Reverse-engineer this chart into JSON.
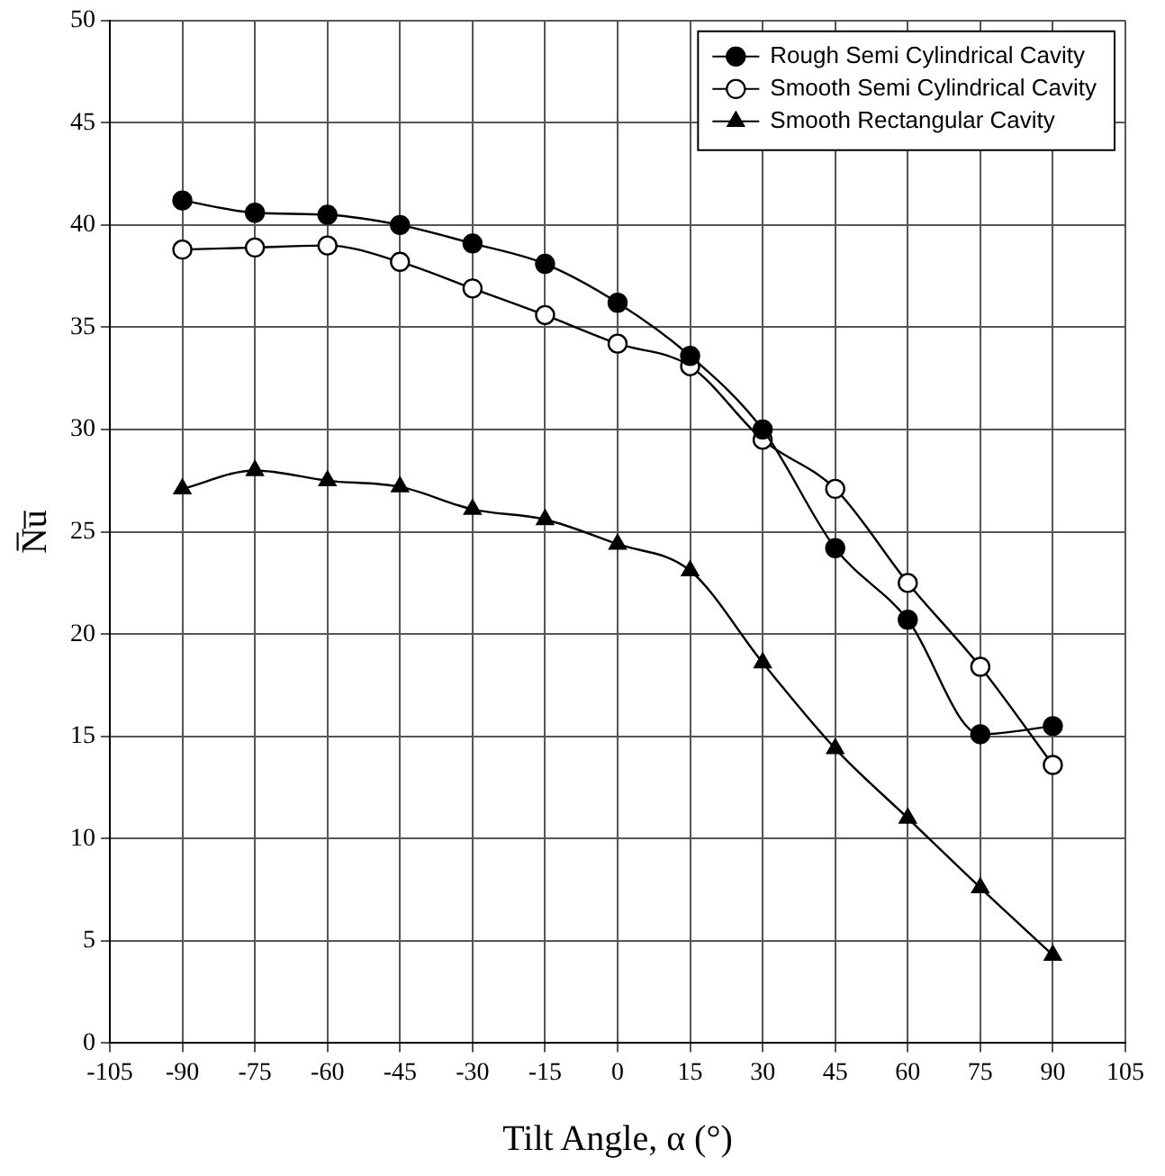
{
  "chart_data": {
    "type": "line",
    "xlabel": "Tilt Angle, α (°)",
    "ylabel": "N̅u̅",
    "x": [
      -90,
      -75,
      -60,
      -45,
      -30,
      -15,
      0,
      15,
      30,
      45,
      60,
      75,
      90
    ],
    "series": [
      {
        "name": "Rough Semi Cylindrical Cavity",
        "color": "#000000",
        "marker": "circle",
        "values": [
          41.2,
          40.6,
          40.5,
          40.0,
          39.1,
          38.1,
          36.2,
          33.6,
          30.0,
          24.2,
          20.7,
          15.1,
          15.5
        ]
      },
      {
        "name": "Smooth Semi Cylindrical Cavity",
        "color": "#000000",
        "marker": "circle",
        "values": [
          38.8,
          38.9,
          39.0,
          38.2,
          36.9,
          35.6,
          34.2,
          33.1,
          29.5,
          27.1,
          22.5,
          18.4,
          13.6
        ]
      },
      {
        "name": "Smooth Rectangular Cavity",
        "color": "#000000",
        "marker": "triangle",
        "values": [
          27.1,
          28.0,
          27.5,
          27.2,
          26.1,
          25.6,
          24.4,
          23.1,
          18.6,
          14.4,
          11.0,
          7.6,
          4.3
        ]
      }
    ],
    "xlim": [
      -105,
      105
    ],
    "xticks": [
      -105,
      -90,
      -75,
      -60,
      -45,
      -30,
      -15,
      0,
      15,
      30,
      45,
      60,
      75,
      90,
      105
    ],
    "ylim": [
      0,
      50
    ],
    "yticks": [
      0,
      5,
      10,
      15,
      20,
      25,
      30,
      35,
      40,
      45,
      50
    ],
    "grid": true,
    "legend": "top right",
    "line_style": "solid"
  }
}
